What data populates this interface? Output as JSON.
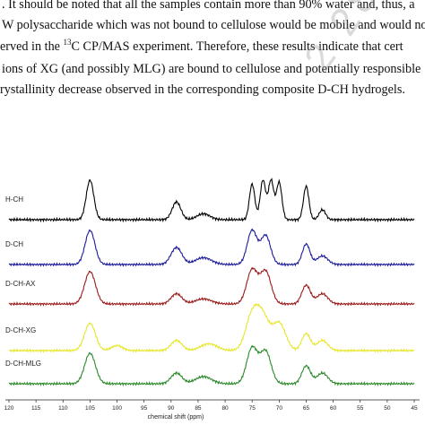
{
  "paragraph": {
    "line1": ". It should be noted that all the samples contain more than 90% water and, thus, a",
    "line2": "W polysaccharide which was not bound to cellulose would be mobile and would not",
    "line3_pre": "erved in the ",
    "line3_sup": "13",
    "line3_post": "C CP/MAS experiment. Therefore, these results indicate that cert",
    "line4": "ions of XG (and possibly MLG) are bound to cellulose and potentially responsible",
    "line5": "rystallinity decrease observed in the corresponding composite D-CH hydrogels."
  },
  "watermark": "2 280416",
  "chart_data": {
    "type": "line",
    "xlabel": "chemical shift (ppm)",
    "xlim": [
      120,
      45
    ],
    "x_reversed": true,
    "x_ticks": [
      120,
      115,
      110,
      105,
      100,
      95,
      90,
      85,
      80,
      75,
      70,
      65,
      60,
      55,
      50,
      45
    ],
    "series": [
      {
        "name": "H-CH",
        "color": "#000000",
        "peaks": [
          {
            "x": 105,
            "h": 1.0,
            "w": 0.7
          },
          {
            "x": 89,
            "h": 0.45,
            "w": 0.8
          },
          {
            "x": 75,
            "h": 0.9,
            "w": 0.5
          },
          {
            "x": 73,
            "h": 1.0,
            "w": 0.5
          },
          {
            "x": 71.5,
            "h": 1.0,
            "w": 0.5
          },
          {
            "x": 70,
            "h": 0.95,
            "w": 0.5
          },
          {
            "x": 65,
            "h": 0.85,
            "w": 0.5
          },
          {
            "x": 62,
            "h": 0.25,
            "w": 0.6
          },
          {
            "x": 84,
            "h": 0.15,
            "w": 1.2
          }
        ]
      },
      {
        "name": "D-CH",
        "color": "#1a1a9a",
        "peaks": [
          {
            "x": 105,
            "h": 1.0,
            "w": 0.9
          },
          {
            "x": 89,
            "h": 0.5,
            "w": 1.0
          },
          {
            "x": 84,
            "h": 0.2,
            "w": 1.5
          },
          {
            "x": 75,
            "h": 1.0,
            "w": 0.9
          },
          {
            "x": 72.5,
            "h": 0.85,
            "w": 0.9
          },
          {
            "x": 65,
            "h": 0.6,
            "w": 0.7
          },
          {
            "x": 62,
            "h": 0.25,
            "w": 1.0
          }
        ]
      },
      {
        "name": "D-CH-AX",
        "color": "#9b1a1a",
        "peaks": [
          {
            "x": 105,
            "h": 0.95,
            "w": 1.0
          },
          {
            "x": 89,
            "h": 0.3,
            "w": 1.0
          },
          {
            "x": 84,
            "h": 0.15,
            "w": 1.5
          },
          {
            "x": 75,
            "h": 1.0,
            "w": 1.0
          },
          {
            "x": 72.5,
            "h": 0.95,
            "w": 1.0
          },
          {
            "x": 65,
            "h": 0.55,
            "w": 0.8
          },
          {
            "x": 62,
            "h": 0.3,
            "w": 1.0
          }
        ]
      },
      {
        "name": "D-CH-XG",
        "color": "#e6e62a",
        "peaks": [
          {
            "x": 105,
            "h": 0.8,
            "w": 1.0
          },
          {
            "x": 100,
            "h": 0.15,
            "w": 1.0
          },
          {
            "x": 89,
            "h": 0.3,
            "w": 1.0
          },
          {
            "x": 83,
            "h": 0.2,
            "w": 1.5
          },
          {
            "x": 75,
            "h": 1.0,
            "w": 1.2
          },
          {
            "x": 73,
            "h": 0.9,
            "w": 1.2
          },
          {
            "x": 70,
            "h": 0.8,
            "w": 1.2
          },
          {
            "x": 65,
            "h": 0.5,
            "w": 0.8
          },
          {
            "x": 62,
            "h": 0.3,
            "w": 1.0
          }
        ]
      },
      {
        "name": "D-CH-MLG",
        "color": "#2a8a2a",
        "peaks": [
          {
            "x": 105,
            "h": 0.85,
            "w": 1.0
          },
          {
            "x": 89,
            "h": 0.3,
            "w": 1.0
          },
          {
            "x": 84,
            "h": 0.2,
            "w": 1.5
          },
          {
            "x": 75,
            "h": 1.0,
            "w": 1.0
          },
          {
            "x": 72.5,
            "h": 0.9,
            "w": 1.0
          },
          {
            "x": 65,
            "h": 0.5,
            "w": 0.8
          },
          {
            "x": 62,
            "h": 0.3,
            "w": 1.0
          }
        ]
      }
    ]
  }
}
